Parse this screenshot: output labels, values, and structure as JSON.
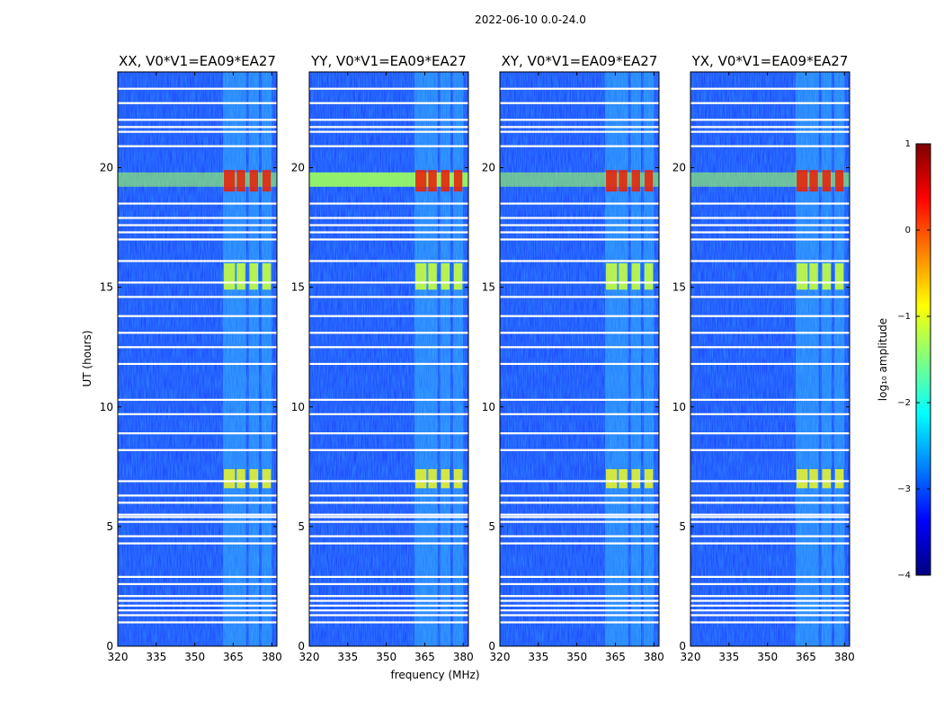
{
  "figure_title": "2022-06-10 0.0-24.0",
  "chart_data": {
    "type": "heatmap",
    "title": "2022-06-10 0.0-24.0",
    "xlabel": "frequency (MHz)",
    "ylabel": "UT (hours)",
    "xlim": [
      320,
      382
    ],
    "ylim": [
      0,
      24
    ],
    "x_ticks": [
      320,
      335,
      350,
      365,
      380
    ],
    "y_ticks": [
      0,
      5,
      10,
      15,
      20
    ],
    "panels": [
      {
        "name": "XX",
        "title": "XX, V0*V1=EA09*EA27"
      },
      {
        "name": "YY",
        "title": "YY, V0*V1=EA09*EA27"
      },
      {
        "name": "XY",
        "title": "XY, V0*V1=EA09*EA27"
      },
      {
        "name": "YX",
        "title": "YX, V0*V1=EA09*EA27"
      }
    ],
    "rfi_bands_mhz": [
      [
        361,
        366
      ],
      [
        366,
        370
      ],
      [
        371,
        375
      ],
      [
        376,
        380
      ]
    ],
    "strong_rfi_hours": [
      [
        6.6,
        7.4
      ],
      [
        14.9,
        16.0
      ],
      [
        19.0,
        19.9
      ]
    ],
    "broadband_rfi_hours": [
      [
        19.2,
        19.8
      ]
    ],
    "flagged_gap_hours": [
      1.0,
      1.3,
      1.5,
      1.7,
      1.9,
      2.1,
      2.6,
      2.9,
      4.3,
      4.6,
      5.2,
      5.4,
      5.5,
      6.0,
      6.3,
      6.9,
      8.2,
      8.9,
      9.7,
      10.3,
      11.8,
      12.5,
      13.1,
      13.8,
      14.6,
      15.2,
      16.1,
      17.0,
      17.3,
      17.6,
      17.9,
      18.5,
      20.9,
      21.5,
      21.7,
      22.0,
      22.7,
      23.3
    ],
    "colorbar": {
      "label": "log₁₀ amplitude",
      "min": -4,
      "max": 1,
      "ticks": [
        1,
        0,
        -1,
        -2,
        -3,
        -4
      ],
      "tick_labels": [
        "1",
        "0",
        "−1",
        "−2",
        "−3",
        "−4"
      ]
    }
  }
}
